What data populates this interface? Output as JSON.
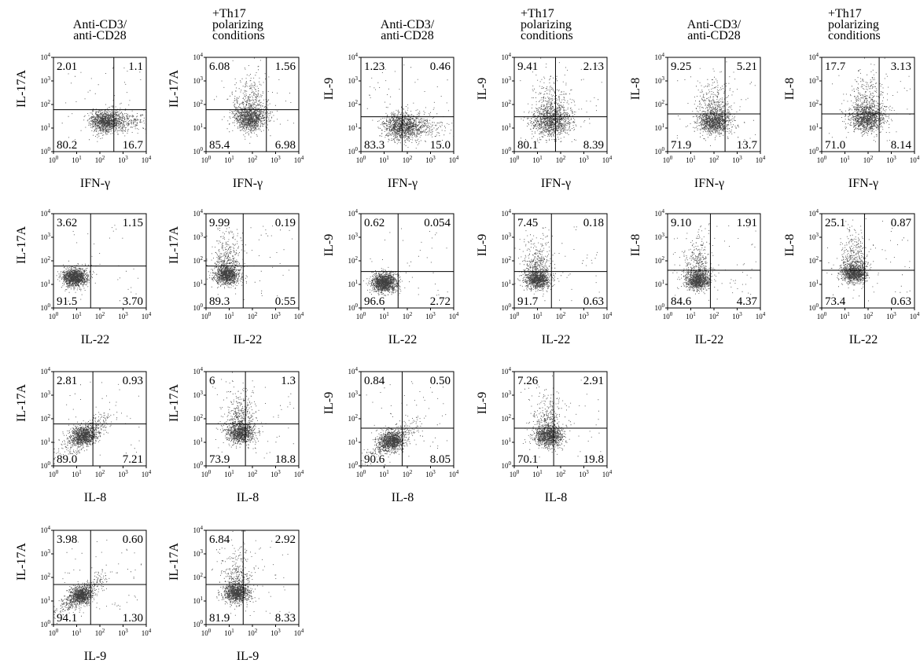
{
  "column_headers": [
    "Anti-CD3/\nanti-CD28",
    "+Th17\npolarizing\nconditions",
    "Anti-CD3/\nanti-CD28",
    "+Th17\npolarizing\nconditions",
    "Anti-CD3/\nanti-CD28",
    "+Th17\npolarizing\nconditions"
  ],
  "tick_labels": [
    "10^0",
    "10^1",
    "10^2",
    "10^3",
    "10^4"
  ],
  "chart_data": [
    {
      "type": "scatter",
      "xlabel": "IFN-γ",
      "ylabel": "IL-17A",
      "log_axes": true,
      "xlim": [
        1,
        10000
      ],
      "ylim": [
        1,
        10000
      ],
      "gate_x": 400,
      "gate_y": 60,
      "quadrants": {
        "UL": "2.01",
        "UR": "1.1",
        "LL": "80.2",
        "LR": "16.7"
      },
      "population": {
        "cx": 150,
        "cy": 20,
        "spread": 0.4,
        "tail": "horizontal"
      }
    },
    {
      "type": "scatter",
      "xlabel": "IFN-γ",
      "ylabel": "IL-17A",
      "log_axes": true,
      "xlim": [
        1,
        10000
      ],
      "ylim": [
        1,
        10000
      ],
      "gate_x": 400,
      "gate_y": 60,
      "quadrants": {
        "UL": "6.08",
        "UR": "1.56",
        "LL": "85.4",
        "LR": "6.98"
      },
      "population": {
        "cx": 80,
        "cy": 25,
        "spread": 0.45,
        "tail": "up"
      }
    },
    {
      "type": "scatter",
      "xlabel": "IFN-γ",
      "ylabel": "IL-9",
      "log_axes": true,
      "xlim": [
        1,
        10000
      ],
      "ylim": [
        1,
        10000
      ],
      "gate_x": 60,
      "gate_y": 30,
      "quadrants": {
        "UL": "1.23",
        "UR": "0.46",
        "LL": "83.3",
        "LR": "15.0"
      },
      "population": {
        "cx": 50,
        "cy": 12,
        "spread": 0.5,
        "tail": "horizontal"
      }
    },
    {
      "type": "scatter",
      "xlabel": "IFN-γ",
      "ylabel": "IL-9",
      "log_axes": true,
      "xlim": [
        1,
        10000
      ],
      "ylim": [
        1,
        10000
      ],
      "gate_x": 60,
      "gate_y": 30,
      "quadrants": {
        "UL": "9.41",
        "UR": "2.13",
        "LL": "80.1",
        "LR": "8.39"
      },
      "population": {
        "cx": 40,
        "cy": 18,
        "spread": 0.55,
        "tail": "up"
      }
    },
    {
      "type": "scatter",
      "xlabel": "IFN-γ",
      "ylabel": "IL-8",
      "log_axes": true,
      "xlim": [
        1,
        10000
      ],
      "ylim": [
        1,
        10000
      ],
      "gate_x": 300,
      "gate_y": 40,
      "quadrants": {
        "UL": "9.25",
        "UR": "5.21",
        "LL": "71.9",
        "LR": "13.7"
      },
      "population": {
        "cx": 100,
        "cy": 18,
        "spread": 0.45,
        "tail": "up"
      }
    },
    {
      "type": "scatter",
      "xlabel": "IFN-γ",
      "ylabel": "IL-8",
      "log_axes": true,
      "xlim": [
        1,
        10000
      ],
      "ylim": [
        1,
        10000
      ],
      "gate_x": 300,
      "gate_y": 40,
      "quadrants": {
        "UL": "17.7",
        "UR": "3.13",
        "LL": "71.0",
        "LR": "8.14"
      },
      "population": {
        "cx": 90,
        "cy": 25,
        "spread": 0.5,
        "tail": "up"
      }
    },
    {
      "type": "scatter",
      "xlabel": "IL-22",
      "ylabel": "IL-17A",
      "log_axes": true,
      "xlim": [
        1,
        10000
      ],
      "ylim": [
        1,
        10000
      ],
      "gate_x": 40,
      "gate_y": 60,
      "quadrants": {
        "UL": "3.62",
        "UR": "1.15",
        "LL": "91.5",
        "LR": "3.70"
      },
      "population": {
        "cx": 8,
        "cy": 20,
        "spread": 0.35,
        "tail": "none"
      }
    },
    {
      "type": "scatter",
      "xlabel": "IL-22",
      "ylabel": "IL-17A",
      "log_axes": true,
      "xlim": [
        1,
        10000
      ],
      "ylim": [
        1,
        10000
      ],
      "gate_x": 40,
      "gate_y": 60,
      "quadrants": {
        "UL": "9.99",
        "UR": "0.19",
        "LL": "89.3",
        "LR": "0.55"
      },
      "population": {
        "cx": 8,
        "cy": 25,
        "spread": 0.35,
        "tail": "up"
      }
    },
    {
      "type": "scatter",
      "xlabel": "IL-22",
      "ylabel": "IL-9",
      "log_axes": true,
      "xlim": [
        1,
        10000
      ],
      "ylim": [
        1,
        10000
      ],
      "gate_x": 40,
      "gate_y": 35,
      "quadrants": {
        "UL": "0.62",
        "UR": "0.054",
        "LL": "96.6",
        "LR": "2.72"
      },
      "population": {
        "cx": 10,
        "cy": 12,
        "spread": 0.35,
        "tail": "none"
      }
    },
    {
      "type": "scatter",
      "xlabel": "IL-22",
      "ylabel": "IL-9",
      "log_axes": true,
      "xlim": [
        1,
        10000
      ],
      "ylim": [
        1,
        10000
      ],
      "gate_x": 40,
      "gate_y": 35,
      "quadrants": {
        "UL": "7.45",
        "UR": "0.18",
        "LL": "91.7",
        "LR": "0.63"
      },
      "population": {
        "cx": 10,
        "cy": 16,
        "spread": 0.35,
        "tail": "up"
      }
    },
    {
      "type": "scatter",
      "xlabel": "IL-22",
      "ylabel": "IL-8",
      "log_axes": true,
      "xlim": [
        1,
        10000
      ],
      "ylim": [
        1,
        10000
      ],
      "gate_x": 70,
      "gate_y": 40,
      "quadrants": {
        "UL": "9.10",
        "UR": "1.91",
        "LL": "84.6",
        "LR": "4.37"
      },
      "population": {
        "cx": 20,
        "cy": 15,
        "spread": 0.35,
        "tail": "up"
      }
    },
    {
      "type": "scatter",
      "xlabel": "IL-22",
      "ylabel": "IL-8",
      "log_axes": true,
      "xlim": [
        1,
        10000
      ],
      "ylim": [
        1,
        10000
      ],
      "gate_x": 70,
      "gate_y": 40,
      "quadrants": {
        "UL": "25.1",
        "UR": "0.87",
        "LL": "73.4",
        "LR": "0.63"
      },
      "population": {
        "cx": 25,
        "cy": 30,
        "spread": 0.35,
        "tail": "up"
      }
    },
    {
      "type": "scatter",
      "xlabel": "IL-8",
      "ylabel": "IL-17A",
      "log_axes": true,
      "xlim": [
        1,
        10000
      ],
      "ylim": [
        1,
        10000
      ],
      "gate_x": 50,
      "gate_y": 60,
      "quadrants": {
        "UL": "2.81",
        "UR": "0.93",
        "LL": "89.0",
        "LR": "7.21"
      },
      "population": {
        "cx": 20,
        "cy": 20,
        "spread": 0.35,
        "tail": "diagonal"
      }
    },
    {
      "type": "scatter",
      "xlabel": "IL-8",
      "ylabel": "IL-17A",
      "log_axes": true,
      "xlim": [
        1,
        10000
      ],
      "ylim": [
        1,
        10000
      ],
      "gate_x": 50,
      "gate_y": 60,
      "quadrants": {
        "UL": "6",
        "UR": "1.3",
        "LL": "73.9",
        "LR": "18.8"
      },
      "population": {
        "cx": 30,
        "cy": 25,
        "spread": 0.4,
        "tail": "up"
      }
    },
    {
      "type": "scatter",
      "xlabel": "IL-8",
      "ylabel": "IL-9",
      "log_axes": true,
      "xlim": [
        1,
        10000
      ],
      "ylim": [
        1,
        10000
      ],
      "gate_x": 60,
      "gate_y": 40,
      "quadrants": {
        "UL": "0.84",
        "UR": "0.50",
        "LL": "90.6",
        "LR": "8.05"
      },
      "population": {
        "cx": 20,
        "cy": 12,
        "spread": 0.35,
        "tail": "diagonal"
      }
    },
    {
      "type": "scatter",
      "xlabel": "IL-8",
      "ylabel": "IL-9",
      "log_axes": true,
      "xlim": [
        1,
        10000
      ],
      "ylim": [
        1,
        10000
      ],
      "gate_x": 50,
      "gate_y": 40,
      "quadrants": {
        "UL": "7.26",
        "UR": "2.91",
        "LL": "70.1",
        "LR": "19.8"
      },
      "population": {
        "cx": 30,
        "cy": 18,
        "spread": 0.4,
        "tail": "up"
      }
    },
    {
      "type": "scatter",
      "xlabel": "IL-9",
      "ylabel": "IL-17A",
      "log_axes": true,
      "xlim": [
        1,
        10000
      ],
      "ylim": [
        1,
        10000
      ],
      "gate_x": 40,
      "gate_y": 50,
      "quadrants": {
        "UL": "3.98",
        "UR": "0.60",
        "LL": "94.1",
        "LR": "1.30"
      },
      "population": {
        "cx": 15,
        "cy": 18,
        "spread": 0.3,
        "tail": "diagonal"
      }
    },
    {
      "type": "scatter",
      "xlabel": "IL-9",
      "ylabel": "IL-17A",
      "log_axes": true,
      "xlim": [
        1,
        10000
      ],
      "ylim": [
        1,
        10000
      ],
      "gate_x": 40,
      "gate_y": 50,
      "quadrants": {
        "UL": "6.84",
        "UR": "2.92",
        "LL": "81.9",
        "LR": "8.33"
      },
      "population": {
        "cx": 20,
        "cy": 22,
        "spread": 0.35,
        "tail": "up"
      }
    }
  ]
}
